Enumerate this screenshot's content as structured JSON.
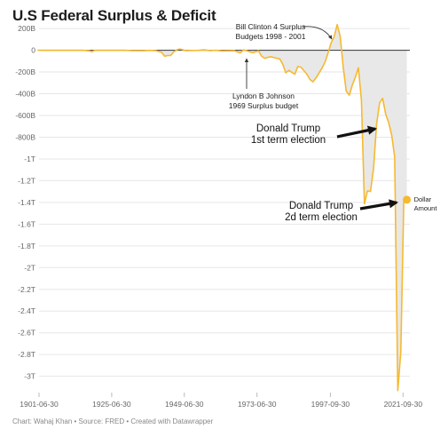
{
  "title": "U.S Federal Surplus & Deficit",
  "footer": "Chart: Wahaj Khan • Source: FRED • Created with Datawrapper",
  "colors": {
    "line": "#f6b931",
    "area": "#e8e8e8",
    "zero": "#333333",
    "grid": "#e6e6e6"
  },
  "chart_data": {
    "type": "area",
    "title": "U.S Federal Surplus & Deficit",
    "xlabel": "",
    "ylabel": "",
    "x_ticks": [
      "1901-06-30",
      "1925-06-30",
      "1949-06-30",
      "1973-06-30",
      "1997-09-30",
      "2021-09-30"
    ],
    "y_ticks": [
      "200B",
      "0",
      "-200B",
      "-400B",
      "-600B",
      "-800B",
      "-1T",
      "-1.2T",
      "-1.4T",
      "-1.6T",
      "-1.8T",
      "-2T",
      "-2.2T",
      "-2.4T",
      "-2.6T",
      "-2.8T",
      "-3T"
    ],
    "y_tick_values": [
      0.2,
      0,
      -0.2,
      -0.4,
      -0.6,
      -0.8,
      -1.0,
      -1.2,
      -1.4,
      -1.6,
      -1.8,
      -2.0,
      -2.2,
      -2.4,
      -2.6,
      -2.8,
      -3.0
    ],
    "ylim": [
      -3.15,
      0.25
    ],
    "xlim": [
      1901.5,
      2024
    ],
    "y_unit": "trillions of dollars",
    "grid": true,
    "series": [
      {
        "name": "Dollar Amount",
        "x": [
          1901,
          1904,
          1907,
          1910,
          1913,
          1916,
          1918,
          1919,
          1920,
          1922,
          1926,
          1930,
          1932,
          1934,
          1936,
          1938,
          1940,
          1942,
          1943,
          1944,
          1945,
          1946,
          1947,
          1948,
          1950,
          1952,
          1954,
          1956,
          1958,
          1960,
          1962,
          1964,
          1966,
          1968,
          1969,
          1970,
          1972,
          1974,
          1975,
          1976,
          1978,
          1980,
          1981,
          1982,
          1983,
          1984,
          1986,
          1987,
          1988,
          1990,
          1991,
          1992,
          1993,
          1995,
          1996,
          1997,
          1998,
          1999,
          2000,
          2001,
          2002,
          2003,
          2004,
          2005,
          2006,
          2007,
          2008,
          2009,
          2010,
          2011,
          2012,
          2013,
          2014,
          2015,
          2016,
          2017,
          2018,
          2019,
          2020,
          2021,
          2022,
          2023
        ],
        "y": [
          0.0,
          0.0,
          0.0,
          0.0,
          0.0,
          0.0,
          -0.005,
          -0.013,
          0.0,
          0.0,
          0.0,
          0.0,
          -0.003,
          -0.004,
          -0.004,
          -0.001,
          -0.003,
          -0.02,
          -0.055,
          -0.048,
          -0.048,
          -0.016,
          0.004,
          0.012,
          -0.003,
          -0.002,
          -0.001,
          0.004,
          -0.003,
          0.0,
          -0.007,
          -0.006,
          -0.004,
          -0.025,
          0.003,
          -0.003,
          -0.023,
          -0.006,
          -0.053,
          -0.074,
          -0.059,
          -0.074,
          -0.079,
          -0.128,
          -0.208,
          -0.185,
          -0.221,
          -0.15,
          -0.155,
          -0.221,
          -0.269,
          -0.29,
          -0.255,
          -0.164,
          -0.107,
          -0.022,
          0.069,
          0.126,
          0.236,
          0.128,
          -0.158,
          -0.378,
          -0.413,
          -0.318,
          -0.248,
          -0.161,
          -0.459,
          -1.413,
          -1.294,
          -1.3,
          -1.087,
          -0.68,
          -0.485,
          -0.442,
          -0.585,
          -0.665,
          -0.779,
          -0.984,
          -3.132,
          -2.775,
          -1.375,
          -1.375
        ]
      }
    ],
    "annotations": [
      {
        "text": [
          "Bill Clinton 4 Surplus",
          "Budgets 1998 - 2001"
        ],
        "x": 2000,
        "y": 0.236
      },
      {
        "text": [
          "Lyndon B Johnson",
          "1969 Surplus budget"
        ],
        "x": 1969,
        "y": 0.003
      },
      {
        "text": [
          "Donald Trump",
          "1st term election"
        ],
        "x": 2016,
        "y": -0.585
      },
      {
        "text": [
          "Donald Trump",
          "2d term election"
        ],
        "x": 2023,
        "y": -1.375
      }
    ],
    "end_label": [
      "Dollar",
      "Amount"
    ]
  }
}
